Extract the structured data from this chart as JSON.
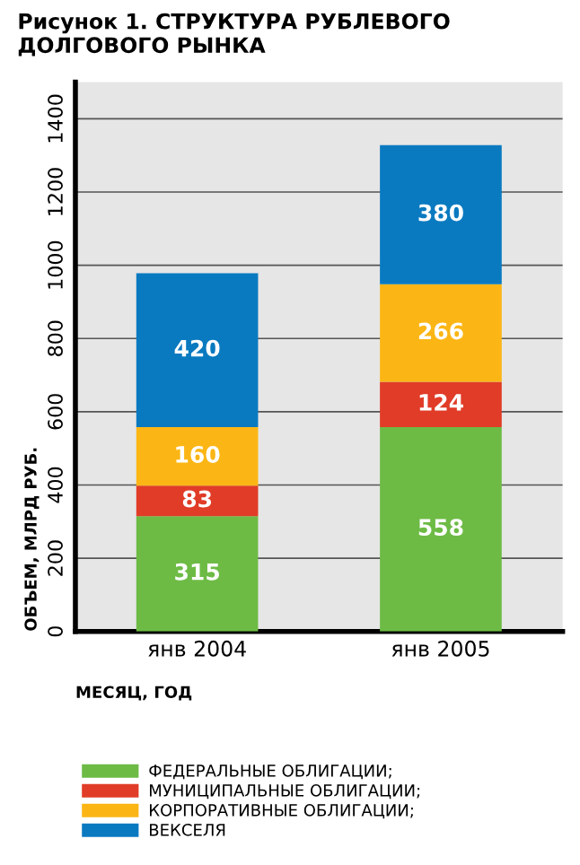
{
  "chart_data": {
    "type": "bar",
    "stacked": true,
    "title": "Рисунок 1. СТРУКТУРА РУБЛЕВОГО ДОЛГОВОГО РЫНКА",
    "xlabel": "МЕСЯЦ, ГОД",
    "ylabel": "ОБЪЕМ, МЛРД РУБ.",
    "categories": [
      "янв 2004",
      "янв 2005"
    ],
    "series": [
      {
        "name": "ФЕДЕРАЛЬНЫЕ ОБЛИГАЦИИ;",
        "color": "#6dbb45",
        "values": [
          315,
          558
        ]
      },
      {
        "name": "МУНИЦИПАЛЬНЫЕ ОБЛИГАЦИИ;",
        "color": "#e03c27",
        "values": [
          83,
          124
        ]
      },
      {
        "name": "КОРПОРАТИВНЫЕ ОБЛИГАЦИИ;",
        "color": "#fbb615",
        "values": [
          160,
          266
        ]
      },
      {
        "name": "ВЕКСЕЛЯ",
        "color": "#0a7ac0",
        "values": [
          420,
          380
        ]
      }
    ],
    "ylim": [
      0,
      1500
    ],
    "yticks": [
      0,
      200,
      400,
      600,
      800,
      1000,
      1200,
      1400
    ],
    "grid": "y",
    "legend": "bottom",
    "data_labels": true
  }
}
